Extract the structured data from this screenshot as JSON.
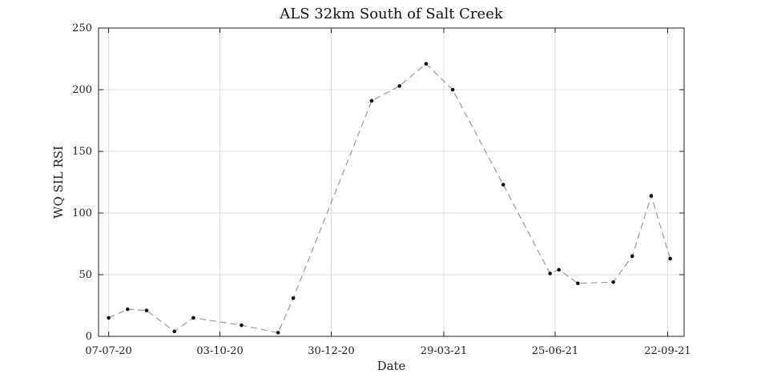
{
  "chart_data": {
    "type": "line",
    "title": "ALS 32km South of Salt Creek",
    "xlabel": "Date",
    "ylabel": "WQ SIL RSI",
    "x_is_date": true,
    "xlim": [
      "2020-06-29",
      "2021-10-05"
    ],
    "ylim": [
      0,
      250
    ],
    "x_ticks": [
      {
        "date": "2020-07-07",
        "label": "07-07-20"
      },
      {
        "date": "2020-10-03",
        "label": "03-10-20"
      },
      {
        "date": "2020-12-30",
        "label": "30-12-20"
      },
      {
        "date": "2021-03-29",
        "label": "29-03-21"
      },
      {
        "date": "2021-06-25",
        "label": "25-06-21"
      },
      {
        "date": "2021-09-22",
        "label": "22-09-21"
      }
    ],
    "y_ticks": [
      0,
      50,
      100,
      150,
      200,
      250
    ],
    "grid": true,
    "line_style": "dashed",
    "line_color": "#999999",
    "marker_color": "#111111",
    "series": [
      {
        "points": [
          {
            "x": "2020-07-07",
            "y": 15
          },
          {
            "x": "2020-07-22",
            "y": 22
          },
          {
            "x": "2020-08-06",
            "y": 21
          },
          {
            "x": "2020-08-28",
            "y": 4
          },
          {
            "x": "2020-09-12",
            "y": 15
          },
          {
            "x": "2020-10-20",
            "y": 9
          },
          {
            "x": "2020-11-18",
            "y": 3
          },
          {
            "x": "2020-11-30",
            "y": 31
          },
          {
            "x": "2021-01-31",
            "y": 191
          },
          {
            "x": "2021-02-22",
            "y": 203
          },
          {
            "x": "2021-03-15",
            "y": 221
          },
          {
            "x": "2021-04-05",
            "y": 200
          },
          {
            "x": "2021-05-15",
            "y": 123
          },
          {
            "x": "2021-06-21",
            "y": 51
          },
          {
            "x": "2021-06-28",
            "y": 54
          },
          {
            "x": "2021-07-13",
            "y": 43
          },
          {
            "x": "2021-08-10",
            "y": 44
          },
          {
            "x": "2021-08-25",
            "y": 65
          },
          {
            "x": "2021-09-09",
            "y": 114
          },
          {
            "x": "2021-09-24",
            "y": 63
          }
        ]
      }
    ]
  }
}
